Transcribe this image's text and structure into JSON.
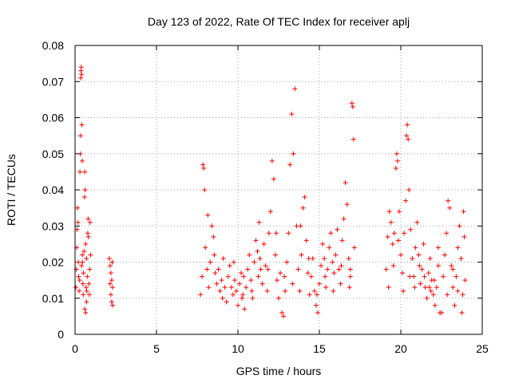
{
  "chart_data": {
    "type": "scatter",
    "title": "Day 123 of 2022, Rate Of TEC Index for receiver aplj",
    "xlabel": "GPS time / hours",
    "ylabel": "ROTI / TECUs",
    "xlim": [
      0,
      25
    ],
    "ylim": [
      0,
      0.08
    ],
    "xticks": [
      0,
      5,
      10,
      15,
      20,
      25
    ],
    "yticks": [
      0,
      0.01,
      0.02,
      0.03,
      0.04,
      0.05,
      0.06,
      0.07,
      0.08
    ],
    "xtick_labels": [
      "0",
      "5",
      "10",
      "15",
      "20",
      "25"
    ],
    "ytick_labels": [
      "0",
      "0.01",
      "0.02",
      "0.03",
      "0.04",
      "0.05",
      "0.06",
      "0.07",
      "0.08"
    ],
    "grid": true,
    "marker": "+",
    "color": "#ff0000",
    "points": [
      [
        0.05,
        0.013
      ],
      [
        0.08,
        0.018
      ],
      [
        0.1,
        0.024
      ],
      [
        0.12,
        0.029
      ],
      [
        0.15,
        0.035
      ],
      [
        0.18,
        0.031
      ],
      [
        0.2,
        0.02
      ],
      [
        0.22,
        0.016
      ],
      [
        0.25,
        0.012
      ],
      [
        0.28,
        0.015
      ],
      [
        0.3,
        0.045
      ],
      [
        0.32,
        0.05
      ],
      [
        0.34,
        0.055
      ],
      [
        0.35,
        0.071
      ],
      [
        0.36,
        0.073
      ],
      [
        0.38,
        0.074
      ],
      [
        0.4,
        0.072
      ],
      [
        0.42,
        0.058
      ],
      [
        0.44,
        0.048
      ],
      [
        0.45,
        0.02
      ],
      [
        0.48,
        0.014
      ],
      [
        0.5,
        0.011
      ],
      [
        0.52,
        0.017
      ],
      [
        0.55,
        0.023
      ],
      [
        0.58,
        0.038
      ],
      [
        0.6,
        0.045
      ],
      [
        0.62,
        0.04
      ],
      [
        0.65,
        0.025
      ],
      [
        0.68,
        0.013
      ],
      [
        0.7,
        0.009
      ],
      [
        0.72,
        0.012
      ],
      [
        0.75,
        0.016
      ],
      [
        0.78,
        0.028
      ],
      [
        0.8,
        0.032
      ],
      [
        0.82,
        0.027
      ],
      [
        0.85,
        0.014
      ],
      [
        0.88,
        0.011
      ],
      [
        0.9,
        0.018
      ],
      [
        0.92,
        0.031
      ],
      [
        0.95,
        0.022
      ],
      [
        0.6,
        0.007
      ],
      [
        0.65,
        0.006
      ],
      [
        0.4,
        0.019
      ],
      [
        0.45,
        0.022
      ],
      [
        0.7,
        0.021
      ],
      [
        2.1,
        0.021
      ],
      [
        2.15,
        0.019
      ],
      [
        2.2,
        0.017
      ],
      [
        2.25,
        0.015
      ],
      [
        2.3,
        0.013
      ],
      [
        2.2,
        0.011
      ],
      [
        2.25,
        0.009
      ],
      [
        2.3,
        0.008
      ],
      [
        2.15,
        0.014
      ],
      [
        2.28,
        0.02
      ],
      [
        7.7,
        0.011
      ],
      [
        7.8,
        0.016
      ],
      [
        7.85,
        0.047
      ],
      [
        7.9,
        0.046
      ],
      [
        7.95,
        0.04
      ],
      [
        8.0,
        0.024
      ],
      [
        8.1,
        0.018
      ],
      [
        8.2,
        0.013
      ],
      [
        8.3,
        0.02
      ],
      [
        8.4,
        0.03
      ],
      [
        8.5,
        0.027
      ],
      [
        8.6,
        0.017
      ],
      [
        8.7,
        0.014
      ],
      [
        8.8,
        0.018
      ],
      [
        8.9,
        0.012
      ],
      [
        9.0,
        0.015
      ],
      [
        9.1,
        0.021
      ],
      [
        9.2,
        0.013
      ],
      [
        9.3,
        0.009
      ],
      [
        9.4,
        0.016
      ],
      [
        9.5,
        0.019
      ],
      [
        9.6,
        0.013
      ],
      [
        9.7,
        0.011
      ],
      [
        9.8,
        0.015
      ],
      [
        9.9,
        0.012
      ],
      [
        10.0,
        0.008
      ],
      [
        10.1,
        0.014
      ],
      [
        10.2,
        0.017
      ],
      [
        10.3,
        0.011
      ],
      [
        10.4,
        0.007
      ],
      [
        10.5,
        0.013
      ],
      [
        10.6,
        0.018
      ],
      [
        10.7,
        0.022
      ],
      [
        10.8,
        0.015
      ],
      [
        10.9,
        0.01
      ],
      [
        11.0,
        0.02
      ],
      [
        11.1,
        0.026
      ],
      [
        11.2,
        0.023
      ],
      [
        11.3,
        0.031
      ],
      [
        11.4,
        0.018
      ],
      [
        11.5,
        0.014
      ],
      [
        11.6,
        0.025
      ],
      [
        11.7,
        0.019
      ],
      [
        11.8,
        0.012
      ],
      [
        11.9,
        0.028
      ],
      [
        12.0,
        0.034
      ],
      [
        12.1,
        0.048
      ],
      [
        12.2,
        0.043
      ],
      [
        12.3,
        0.022
      ],
      [
        12.4,
        0.015
      ],
      [
        12.5,
        0.01
      ],
      [
        12.6,
        0.017
      ],
      [
        12.7,
        0.006
      ],
      [
        12.8,
        0.005
      ],
      [
        12.9,
        0.012
      ],
      [
        13.0,
        0.02
      ],
      [
        13.1,
        0.028
      ],
      [
        13.2,
        0.047
      ],
      [
        13.3,
        0.061
      ],
      [
        13.4,
        0.05
      ],
      [
        13.5,
        0.068
      ],
      [
        13.6,
        0.03
      ],
      [
        13.7,
        0.018
      ],
      [
        13.8,
        0.012
      ],
      [
        13.9,
        0.022
      ],
      [
        14.0,
        0.035
      ],
      [
        14.1,
        0.038
      ],
      [
        14.2,
        0.026
      ],
      [
        14.3,
        0.017
      ],
      [
        14.4,
        0.011
      ],
      [
        14.5,
        0.016
      ],
      [
        14.6,
        0.021
      ],
      [
        14.7,
        0.012
      ],
      [
        14.8,
        0.008
      ],
      [
        14.9,
        0.006
      ],
      [
        15.0,
        0.014
      ],
      [
        15.1,
        0.019
      ],
      [
        15.2,
        0.025
      ],
      [
        15.3,
        0.021
      ],
      [
        15.4,
        0.013
      ],
      [
        15.5,
        0.018
      ],
      [
        15.6,
        0.024
      ],
      [
        15.7,
        0.028
      ],
      [
        15.8,
        0.02
      ],
      [
        15.9,
        0.017
      ],
      [
        16.0,
        0.022
      ],
      [
        16.1,
        0.029
      ],
      [
        16.2,
        0.018
      ],
      [
        16.3,
        0.014
      ],
      [
        16.4,
        0.026
      ],
      [
        16.5,
        0.032
      ],
      [
        16.6,
        0.042
      ],
      [
        16.7,
        0.036
      ],
      [
        16.8,
        0.021
      ],
      [
        16.9,
        0.018
      ],
      [
        17.0,
        0.064
      ],
      [
        17.05,
        0.063
      ],
      [
        17.1,
        0.054
      ],
      [
        17.15,
        0.024
      ],
      [
        16.9,
        0.016
      ],
      [
        19.1,
        0.018
      ],
      [
        19.2,
        0.027
      ],
      [
        19.3,
        0.034
      ],
      [
        19.4,
        0.031
      ],
      [
        19.5,
        0.025
      ],
      [
        19.6,
        0.028
      ],
      [
        19.7,
        0.046
      ],
      [
        19.75,
        0.05
      ],
      [
        19.8,
        0.048
      ],
      [
        19.9,
        0.034
      ],
      [
        20.0,
        0.022
      ],
      [
        20.1,
        0.017
      ],
      [
        20.2,
        0.028
      ],
      [
        20.3,
        0.037
      ],
      [
        20.35,
        0.055
      ],
      [
        20.4,
        0.058
      ],
      [
        20.45,
        0.054
      ],
      [
        20.5,
        0.04
      ],
      [
        20.6,
        0.029
      ],
      [
        20.7,
        0.021
      ],
      [
        20.8,
        0.016
      ],
      [
        20.9,
        0.024
      ],
      [
        21.0,
        0.031
      ],
      [
        21.1,
        0.022
      ],
      [
        21.2,
        0.014
      ],
      [
        21.3,
        0.018
      ],
      [
        21.4,
        0.025
      ],
      [
        21.5,
        0.013
      ],
      [
        21.6,
        0.01
      ],
      [
        21.7,
        0.017
      ],
      [
        21.8,
        0.021
      ],
      [
        21.9,
        0.015
      ],
      [
        22.0,
        0.011
      ],
      [
        22.1,
        0.008
      ],
      [
        22.2,
        0.013
      ],
      [
        22.3,
        0.019
      ],
      [
        22.4,
        0.006
      ],
      [
        22.5,
        0.006
      ],
      [
        22.6,
        0.016
      ],
      [
        22.7,
        0.022
      ],
      [
        22.8,
        0.028
      ],
      [
        22.9,
        0.037
      ],
      [
        23.0,
        0.035
      ],
      [
        23.1,
        0.019
      ],
      [
        23.2,
        0.013
      ],
      [
        23.3,
        0.008
      ],
      [
        23.4,
        0.016
      ],
      [
        23.5,
        0.024
      ],
      [
        23.6,
        0.03
      ],
      [
        23.7,
        0.021
      ],
      [
        23.75,
        0.006
      ],
      [
        23.8,
        0.011
      ],
      [
        23.85,
        0.034
      ],
      [
        23.9,
        0.027
      ],
      [
        23.95,
        0.015
      ],
      [
        23.5,
        0.012
      ],
      [
        23.2,
        0.018
      ],
      [
        22.85,
        0.011
      ],
      [
        22.3,
        0.024
      ],
      [
        21.85,
        0.012
      ],
      [
        8.15,
        0.033
      ],
      [
        8.55,
        0.022
      ],
      [
        9.05,
        0.01
      ],
      [
        9.75,
        0.02
      ],
      [
        10.35,
        0.016
      ],
      [
        10.85,
        0.012
      ],
      [
        11.35,
        0.021
      ],
      [
        11.85,
        0.018
      ],
      [
        12.35,
        0.028
      ],
      [
        12.85,
        0.016
      ],
      [
        13.35,
        0.014
      ],
      [
        13.85,
        0.03
      ],
      [
        14.35,
        0.021
      ],
      [
        14.85,
        0.011
      ],
      [
        15.35,
        0.016
      ],
      [
        15.85,
        0.012
      ],
      [
        16.35,
        0.019
      ],
      [
        16.85,
        0.013
      ],
      [
        11.25,
        0.016
      ],
      [
        10.25,
        0.01
      ],
      [
        19.25,
        0.013
      ],
      [
        19.55,
        0.019
      ],
      [
        19.85,
        0.026
      ],
      [
        20.15,
        0.012
      ],
      [
        20.55,
        0.016
      ],
      [
        20.85,
        0.013
      ],
      [
        21.15,
        0.019
      ],
      [
        21.45,
        0.016
      ],
      [
        21.75,
        0.013
      ],
      [
        22.05,
        0.015
      ]
    ]
  }
}
